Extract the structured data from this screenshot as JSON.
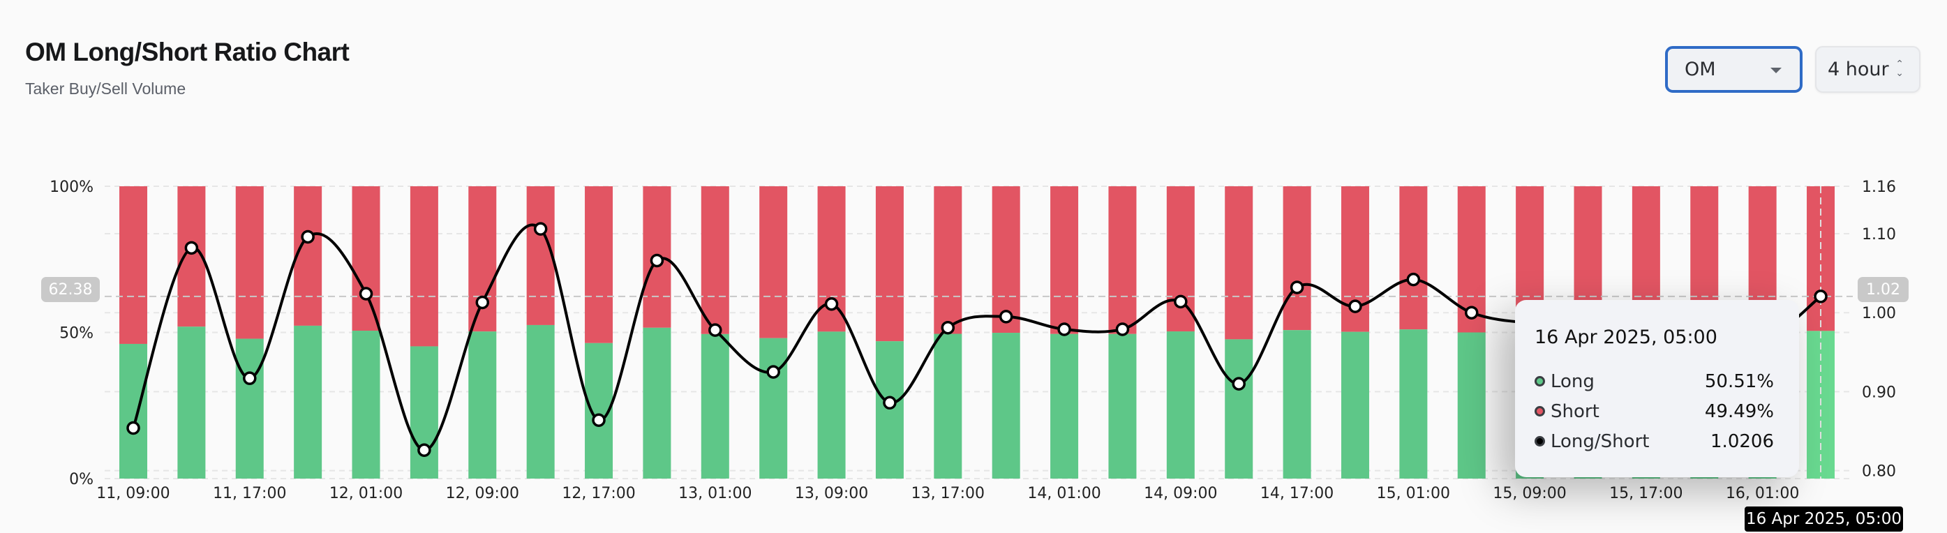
{
  "header": {
    "title": "OM Long/Short Ratio Chart",
    "subtitle": "Taker Buy/Sell Volume"
  },
  "controls": {
    "symbol": {
      "value": "OM",
      "icon": "caret-down-icon"
    },
    "interval": {
      "value": "4 hour",
      "icon": "updown-chevron-icon"
    }
  },
  "colors": {
    "long": "#5ec788",
    "short": "#e25563",
    "long_hover": "#69d990",
    "ratio_line": "#000000",
    "accent": "#2f6bc6"
  },
  "chart_data": {
    "type": "bar",
    "stacked": true,
    "x": [
      "11, 09:00",
      "11, 13:00",
      "11, 17:00",
      "11, 21:00",
      "12, 01:00",
      "12, 05:00",
      "12, 09:00",
      "12, 13:00",
      "12, 17:00",
      "12, 21:00",
      "13, 01:00",
      "13, 05:00",
      "13, 09:00",
      "13, 13:00",
      "13, 17:00",
      "13, 21:00",
      "14, 01:00",
      "14, 05:00",
      "14, 09:00",
      "14, 13:00",
      "14, 17:00",
      "14, 21:00",
      "15, 01:00",
      "15, 05:00",
      "15, 09:00",
      "15, 13:00",
      "15, 17:00",
      "15, 21:00",
      "16, 01:00",
      "16, 05:00"
    ],
    "x_tick_labels": [
      "11, 09:00",
      "11, 17:00",
      "12, 01:00",
      "12, 09:00",
      "12, 17:00",
      "13, 01:00",
      "13, 09:00",
      "13, 17:00",
      "14, 01:00",
      "14, 09:00",
      "14, 17:00",
      "15, 01:00",
      "15, 09:00",
      "15, 17:00",
      "16, 01:00"
    ],
    "series": [
      {
        "name": "Long",
        "axis": "left",
        "type": "bar",
        "values": [
          46.07,
          51.97,
          47.84,
          52.29,
          50.59,
          45.24,
          50.32,
          52.52,
          46.35,
          51.6,
          49.44,
          48.05,
          50.27,
          46.98,
          49.52,
          49.87,
          49.47,
          49.47,
          50.35,
          47.64,
          50.79,
          50.2,
          51.03,
          50.0,
          49.67,
          49.67,
          49.0,
          49.67,
          49.1,
          50.51
        ]
      },
      {
        "name": "Short",
        "axis": "left",
        "type": "bar",
        "values": [
          53.93,
          48.03,
          52.16,
          47.71,
          49.41,
          54.76,
          49.68,
          47.48,
          53.65,
          48.4,
          50.56,
          51.95,
          49.73,
          53.02,
          50.48,
          50.13,
          50.53,
          50.53,
          49.65,
          52.36,
          49.21,
          49.8,
          48.97,
          50.0,
          50.33,
          50.33,
          51.0,
          50.33,
          50.9,
          49.49
        ]
      },
      {
        "name": "Long/Short",
        "axis": "right",
        "type": "line",
        "values": [
          0.854,
          1.082,
          0.917,
          1.096,
          1.024,
          0.826,
          1.013,
          1.106,
          0.864,
          1.066,
          0.978,
          0.925,
          1.011,
          0.886,
          0.981,
          0.995,
          0.979,
          0.979,
          1.014,
          0.91,
          1.032,
          1.008,
          1.042,
          1.0,
          0.987,
          0.987,
          0.96,
          0.987,
          0.965,
          1.0206
        ]
      }
    ],
    "left_axis": {
      "ylim": [
        0,
        100
      ],
      "ticks": [
        "0%",
        "50%",
        "100%"
      ]
    },
    "right_axis": {
      "ylim": [
        0.79,
        1.16
      ],
      "ticks": [
        "0.80",
        "0.90",
        "1.00",
        "1.10",
        "1.16"
      ]
    },
    "grid": true,
    "crosshair": {
      "left_label": "62.38",
      "right_label": "1.02",
      "x_label": "16 Apr 2025, 05:00"
    },
    "tooltip": {
      "date": "16 Apr 2025, 05:00",
      "rows": [
        {
          "label": "Long",
          "value": "50.51%",
          "color": "#5ec788"
        },
        {
          "label": "Short",
          "value": "49.49%",
          "color": "#e25563"
        },
        {
          "label": "Long/Short",
          "value": "1.0206",
          "color": "#000000"
        }
      ]
    }
  }
}
